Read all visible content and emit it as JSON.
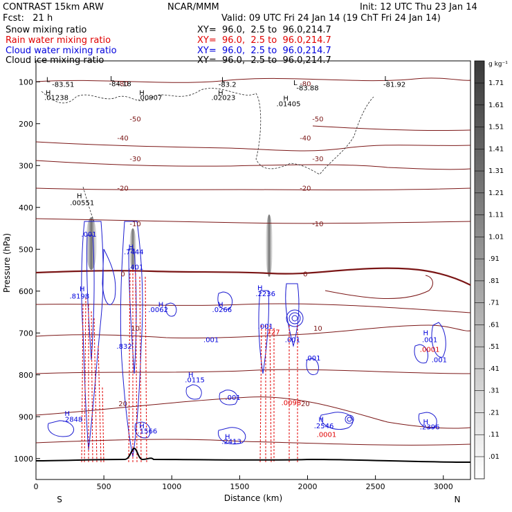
{
  "header": {
    "model": "CONTRAST 15km ARW",
    "org": "NCAR/MMM",
    "init": "Init: 12 UTC Thu 23 Jan 14",
    "fcst": "Fcst:   21 h",
    "valid": "Valid: 09 UTC Fri 24 Jan 14 (19 ChT Fri 24 Jan 14)"
  },
  "fields": [
    {
      "name": "Snow mixing ratio",
      "xy": "XY=  96.0,  2.5 to  96.0,214.7",
      "color": "#000000"
    },
    {
      "name": "Rain water mixing ratio",
      "xy": "XY=  96.0,  2.5 to  96.0,214.7",
      "color": "#e00000"
    },
    {
      "name": "Cloud water mixing ratio",
      "xy": "XY=  96.0,  2.5 to  96.0,214.7",
      "color": "#0000dd"
    },
    {
      "name": "Cloud ice mixing ratio",
      "xy": "XY=  96.0,  2.5 to  96.0,214.7",
      "color": "#000000"
    }
  ],
  "colorbar": {
    "unit": "g kg⁻¹",
    "labels": [
      "1.71",
      "1.61",
      "1.51",
      "1.41",
      "1.31",
      "1.21",
      "1.11",
      "1.01",
      ".91",
      ".81",
      ".71",
      ".61",
      ".51",
      ".41",
      ".31",
      ".21",
      ".11",
      ".01"
    ]
  },
  "chart_data": {
    "type": "contour",
    "xlabel": "Distance (km)",
    "ylabel": "Pressure (hPa)",
    "xlim": [
      0,
      3200
    ],
    "ylim": [
      1050,
      50
    ],
    "x_ticks": [
      0,
      500,
      1000,
      1500,
      2000,
      2500,
      3000
    ],
    "y_ticks": [
      100,
      200,
      300,
      400,
      500,
      600,
      700,
      800,
      900,
      1000
    ],
    "x_end_labels": {
      "left": "S",
      "right": "N"
    },
    "temperature_contours": [
      {
        "label": "-80",
        "p": 105
      },
      {
        "label": "-50",
        "p": 190
      },
      {
        "label": "-40",
        "p": 235
      },
      {
        "label": "-30",
        "p": 285
      },
      {
        "label": "-20",
        "p": 355
      },
      {
        "label": "-10",
        "p": 440
      },
      {
        "label": "0",
        "p": 560
      },
      {
        "label": "10",
        "p": 690
      },
      {
        "label": "20",
        "p": 870
      }
    ],
    "annotations": [
      {
        "text": "-83.51",
        "x": 200,
        "p": 112,
        "color": "#000000"
      },
      {
        "text": "-84.18",
        "x": 620,
        "p": 110,
        "color": "#000000"
      },
      {
        "text": "-83.2",
        "x": 1410,
        "p": 112,
        "color": "#000000"
      },
      {
        "text": "-83.88",
        "x": 2000,
        "p": 120,
        "color": "#000000"
      },
      {
        "text": "-81.92",
        "x": 2640,
        "p": 112,
        "color": "#000000"
      },
      {
        "text": ".01238",
        "x": 150,
        "p": 143,
        "color": "#000000"
      },
      {
        "text": ".00907",
        "x": 840,
        "p": 143,
        "color": "#000000"
      },
      {
        "text": ".02023",
        "x": 1380,
        "p": 143,
        "color": "#000000"
      },
      {
        "text": ".01405",
        "x": 1860,
        "p": 158,
        "color": "#000000"
      },
      {
        "text": ".00551",
        "x": 340,
        "p": 395,
        "color": "#000000"
      },
      {
        "text": ".001",
        "x": 390,
        "p": 470,
        "color": "#0000dd"
      },
      {
        "text": ".7444",
        "x": 720,
        "p": 512,
        "color": "#0000dd"
      },
      {
        "text": ".401",
        "x": 735,
        "p": 548,
        "color": "#0000dd"
      },
      {
        "text": ".8198",
        "x": 320,
        "p": 618,
        "color": "#0000dd"
      },
      {
        "text": ".0062",
        "x": 900,
        "p": 650,
        "color": "#0000dd"
      },
      {
        "text": ".0266",
        "x": 1370,
        "p": 650,
        "color": "#0000dd"
      },
      {
        "text": ".2236",
        "x": 1690,
        "p": 612,
        "color": "#0000dd"
      },
      {
        "text": ".832",
        "x": 650,
        "p": 738,
        "color": "#0000dd"
      },
      {
        "text": ".001",
        "x": 1290,
        "p": 722,
        "color": "#0000dd"
      },
      {
        "text": ".001",
        "x": 1690,
        "p": 690,
        "color": "#0000dd"
      },
      {
        "text": ".001",
        "x": 1890,
        "p": 722,
        "color": "#0000dd"
      },
      {
        "text": ".001",
        "x": 2040,
        "p": 766,
        "color": "#0000dd"
      },
      {
        "text": ".001",
        "x": 2900,
        "p": 722,
        "color": "#0000dd"
      },
      {
        "text": ".001",
        "x": 2970,
        "p": 770,
        "color": "#0000dd"
      },
      {
        "text": ".0115",
        "x": 1170,
        "p": 818,
        "color": "#0000dd"
      },
      {
        "text": ".001",
        "x": 1450,
        "p": 860,
        "color": "#0000dd"
      },
      {
        "text": ".2848",
        "x": 270,
        "p": 912,
        "color": "#0000dd"
      },
      {
        "text": ".1566",
        "x": 820,
        "p": 940,
        "color": "#0000dd"
      },
      {
        "text": ".2413",
        "x": 1440,
        "p": 965,
        "color": "#0000dd"
      },
      {
        "text": ".2546",
        "x": 2120,
        "p": 928,
        "color": "#0000dd"
      },
      {
        "text": ".2396",
        "x": 2900,
        "p": 930,
        "color": "#0000dd"
      },
      {
        "text": ".0001",
        "x": 2900,
        "p": 745,
        "color": "#e00000"
      },
      {
        "text": ".0098",
        "x": 1880,
        "p": 872,
        "color": "#e00000"
      },
      {
        "text": ".0001",
        "x": 2140,
        "p": 948,
        "color": "#e00000"
      },
      {
        "text": ".727",
        "x": 1740,
        "p": 704,
        "color": "#e00000"
      },
      {
        "text": "H",
        "x": 90,
        "p": 132,
        "color": "#000000"
      },
      {
        "text": "H",
        "x": 780,
        "p": 132,
        "color": "#000000"
      },
      {
        "text": "H",
        "x": 1360,
        "p": 132,
        "color": "#000000"
      },
      {
        "text": "H",
        "x": 1840,
        "p": 145,
        "color": "#000000"
      },
      {
        "text": "H",
        "x": 320,
        "p": 378,
        "color": "#000000"
      },
      {
        "text": "H",
        "x": 700,
        "p": 500,
        "color": "#0000dd"
      },
      {
        "text": "H",
        "x": 340,
        "p": 600,
        "color": "#0000dd"
      },
      {
        "text": "H",
        "x": 920,
        "p": 638,
        "color": "#0000dd"
      },
      {
        "text": "H",
        "x": 1360,
        "p": 638,
        "color": "#0000dd"
      },
      {
        "text": "H",
        "x": 1650,
        "p": 598,
        "color": "#0000dd"
      },
      {
        "text": "H",
        "x": 1140,
        "p": 805,
        "color": "#0000dd"
      },
      {
        "text": "H",
        "x": 230,
        "p": 898,
        "color": "#0000dd"
      },
      {
        "text": "H",
        "x": 780,
        "p": 928,
        "color": "#0000dd"
      },
      {
        "text": "H",
        "x": 1410,
        "p": 953,
        "color": "#0000dd"
      },
      {
        "text": "H",
        "x": 2100,
        "p": 912,
        "color": "#0000dd"
      },
      {
        "text": "H",
        "x": 2870,
        "p": 918,
        "color": "#0000dd"
      },
      {
        "text": "H",
        "x": 2870,
        "p": 705,
        "color": "#0000dd"
      },
      {
        "text": "L",
        "x": 90,
        "p": 100,
        "color": "#000000"
      },
      {
        "text": "L",
        "x": 560,
        "p": 98,
        "color": "#000000"
      },
      {
        "text": "L",
        "x": 1380,
        "p": 100,
        "color": "#000000"
      },
      {
        "text": "L",
        "x": 1910,
        "p": 108,
        "color": "#000000"
      },
      {
        "text": "L",
        "x": 2580,
        "p": 98,
        "color": "#000000"
      }
    ]
  }
}
